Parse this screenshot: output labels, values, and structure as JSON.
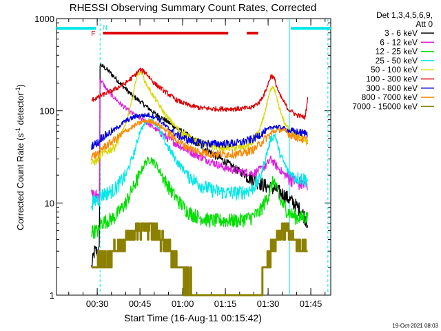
{
  "chart_data": {
    "type": "line",
    "title": "RHESSI Observing Summary Count Rates, Corrected",
    "xlabel": "Start Time (16-Aug-11 00:15:42)",
    "ylabel": "Corrected Count Rate (s",
    "ylabel_sup1": "-1",
    "ylabel_mid": " detector",
    "ylabel_sup2": "-1",
    "ylabel_end": ")",
    "yscale": "log",
    "ylim": [
      1,
      1000
    ],
    "y_ticks": [
      {
        "value": 1,
        "label": "1"
      },
      {
        "value": 10,
        "label": "10"
      },
      {
        "value": 100,
        "label": "100"
      },
      {
        "value": 1000,
        "label": "1000"
      }
    ],
    "x_ticks": [
      {
        "value": 30,
        "label": "00:30"
      },
      {
        "value": 45,
        "label": "00:45"
      },
      {
        "value": 60,
        "label": "01:00"
      },
      {
        "value": 75,
        "label": "01:15"
      },
      {
        "value": 90,
        "label": "01:30"
      },
      {
        "value": 105,
        "label": "01:45"
      }
    ],
    "xlim_minutes": [
      15.7,
      112
    ],
    "legend_header": [
      "Det 1,3,4,5,6,9,",
      "Att 0"
    ],
    "footer_timestamp": "19-Oct-2021 08:03",
    "flag_labels": {
      "F": "F",
      "N": "N"
    },
    "series": [
      {
        "name": "3 - 6 keV",
        "color": "#000000",
        "points": [
          [
            28,
            2
          ],
          [
            29,
            3
          ],
          [
            30,
            3
          ],
          [
            30.8,
            3
          ],
          [
            31,
            320
          ],
          [
            34,
            270
          ],
          [
            38,
            200
          ],
          [
            42,
            150
          ],
          [
            46,
            120
          ],
          [
            50,
            95
          ],
          [
            55,
            75
          ],
          [
            60,
            58
          ],
          [
            65,
            45
          ],
          [
            70,
            35
          ],
          [
            75,
            28
          ],
          [
            80,
            22
          ],
          [
            85,
            18
          ],
          [
            88,
            16
          ],
          [
            90,
            15
          ],
          [
            93,
            14
          ],
          [
            96,
            12
          ],
          [
            99,
            10
          ],
          [
            102,
            8
          ],
          [
            104,
            6
          ]
        ]
      },
      {
        "name": "6 - 12 keV",
        "color": "#e020e0",
        "points": [
          [
            28,
            12
          ],
          [
            29,
            12
          ],
          [
            30,
            12
          ],
          [
            30.8,
            12
          ],
          [
            31,
            220
          ],
          [
            34,
            160
          ],
          [
            38,
            120
          ],
          [
            42,
            95
          ],
          [
            46,
            80
          ],
          [
            50,
            65
          ],
          [
            55,
            50
          ],
          [
            60,
            40
          ],
          [
            65,
            33
          ],
          [
            70,
            28
          ],
          [
            75,
            24
          ],
          [
            80,
            22
          ],
          [
            85,
            21
          ],
          [
            89,
            25
          ],
          [
            91,
            30
          ],
          [
            93,
            25
          ],
          [
            96,
            20
          ],
          [
            100,
            17
          ],
          [
            104,
            15
          ]
        ]
      },
      {
        "name": "12 - 25 keV",
        "color": "#00e000",
        "points": [
          [
            28,
            5
          ],
          [
            30,
            5
          ],
          [
            30.8,
            5
          ],
          [
            31,
            6
          ],
          [
            36,
            7
          ],
          [
            40,
            10
          ],
          [
            44,
            18
          ],
          [
            47,
            28
          ],
          [
            49,
            30
          ],
          [
            51,
            25
          ],
          [
            54,
            17
          ],
          [
            58,
            11
          ],
          [
            62,
            8
          ],
          [
            66,
            7
          ],
          [
            70,
            6.5
          ],
          [
            75,
            6.5
          ],
          [
            80,
            6.5
          ],
          [
            84,
            7
          ],
          [
            87,
            8
          ],
          [
            90,
            12
          ],
          [
            92,
            18
          ],
          [
            94,
            11
          ],
          [
            97,
            8
          ],
          [
            100,
            7
          ],
          [
            104,
            7
          ]
        ]
      },
      {
        "name": "25 - 50 keV",
        "color": "#00e8e8",
        "points": [
          [
            28,
            10
          ],
          [
            30,
            11
          ],
          [
            30.8,
            11
          ],
          [
            31,
            12
          ],
          [
            36,
            14
          ],
          [
            40,
            20
          ],
          [
            43,
            35
          ],
          [
            45,
            60
          ],
          [
            47,
            75
          ],
          [
            49,
            80
          ],
          [
            51,
            70
          ],
          [
            54,
            45
          ],
          [
            58,
            28
          ],
          [
            62,
            20
          ],
          [
            66,
            16
          ],
          [
            70,
            14
          ],
          [
            75,
            13
          ],
          [
            80,
            13
          ],
          [
            84,
            14
          ],
          [
            87,
            18
          ],
          [
            89,
            30
          ],
          [
            91,
            50
          ],
          [
            92.5,
            55
          ],
          [
            94,
            35
          ],
          [
            97,
            22
          ],
          [
            100,
            19
          ],
          [
            104,
            18
          ]
        ]
      },
      {
        "name": "50 - 100 keV",
        "color": "#d8d800",
        "points": [
          [
            28,
            27
          ],
          [
            30,
            29
          ],
          [
            30.8,
            30
          ],
          [
            31,
            33
          ],
          [
            36,
            40
          ],
          [
            40,
            70
          ],
          [
            42,
            120
          ],
          [
            44,
            250
          ],
          [
            45.5,
            270
          ],
          [
            47,
            200
          ],
          [
            50,
            140
          ],
          [
            54,
            90
          ],
          [
            58,
            65
          ],
          [
            62,
            52
          ],
          [
            66,
            45
          ],
          [
            70,
            42
          ],
          [
            75,
            40
          ],
          [
            80,
            40
          ],
          [
            84,
            43
          ],
          [
            87,
            60
          ],
          [
            89,
            100
          ],
          [
            91,
            170
          ],
          [
            92,
            180
          ],
          [
            93.5,
            120
          ],
          [
            96,
            70
          ],
          [
            100,
            55
          ],
          [
            104,
            45
          ]
        ]
      },
      {
        "name": "100 - 300 keV",
        "color": "#e00000",
        "points": [
          [
            28,
            130
          ],
          [
            30,
            140
          ],
          [
            30.8,
            140
          ],
          [
            31,
            145
          ],
          [
            36,
            170
          ],
          [
            40,
            200
          ],
          [
            43,
            240
          ],
          [
            45,
            280
          ],
          [
            47,
            260
          ],
          [
            50,
            200
          ],
          [
            54,
            160
          ],
          [
            58,
            130
          ],
          [
            62,
            115
          ],
          [
            66,
            108
          ],
          [
            70,
            105
          ],
          [
            75,
            105
          ],
          [
            80,
            105
          ],
          [
            84,
            108
          ],
          [
            87,
            125
          ],
          [
            89,
            160
          ],
          [
            91,
            240
          ],
          [
            92,
            230
          ],
          [
            94,
            150
          ],
          [
            97,
            105
          ],
          [
            100,
            90
          ],
          [
            103,
            85
          ],
          [
            104,
            140
          ]
        ]
      },
      {
        "name": "300 - 800 keV",
        "color": "#0000e0",
        "points": [
          [
            28,
            42
          ],
          [
            30,
            45
          ],
          [
            30.8,
            45
          ],
          [
            31,
            50
          ],
          [
            36,
            62
          ],
          [
            40,
            78
          ],
          [
            44,
            88
          ],
          [
            48,
            90
          ],
          [
            51,
            85
          ],
          [
            54,
            68
          ],
          [
            58,
            55
          ],
          [
            62,
            48
          ],
          [
            66,
            45
          ],
          [
            70,
            44
          ],
          [
            75,
            44
          ],
          [
            80,
            45
          ],
          [
            85,
            50
          ],
          [
            89,
            60
          ],
          [
            92,
            68
          ],
          [
            95,
            65
          ],
          [
            98,
            60
          ],
          [
            101,
            58
          ],
          [
            104,
            57
          ]
        ]
      },
      {
        "name": "800 - 7000 keV",
        "color": "#ff8800",
        "points": [
          [
            28,
            32
          ],
          [
            30,
            34
          ],
          [
            30.8,
            34
          ],
          [
            31,
            38
          ],
          [
            36,
            48
          ],
          [
            40,
            60
          ],
          [
            44,
            72
          ],
          [
            47,
            78
          ],
          [
            50,
            76
          ],
          [
            54,
            62
          ],
          [
            58,
            48
          ],
          [
            62,
            40
          ],
          [
            66,
            36
          ],
          [
            70,
            34
          ],
          [
            75,
            34
          ],
          [
            80,
            34
          ],
          [
            85,
            38
          ],
          [
            89,
            50
          ],
          [
            92,
            60
          ],
          [
            95,
            62
          ],
          [
            98,
            55
          ],
          [
            101,
            50
          ],
          [
            104,
            48
          ]
        ]
      },
      {
        "name": "7000 - 15000 keV",
        "color": "#8b8000",
        "points": [
          [
            28,
            1.8
          ],
          [
            30,
            2.2
          ],
          [
            33,
            2.5
          ],
          [
            36,
            3
          ],
          [
            40,
            4
          ],
          [
            44,
            5
          ],
          [
            47,
            5.5
          ],
          [
            50,
            5
          ],
          [
            53,
            4
          ],
          [
            56,
            3
          ],
          [
            59,
            2
          ],
          [
            62,
            1.5
          ],
          [
            64,
            1
          ],
          [
            86,
            1
          ],
          [
            88,
            1.5
          ],
          [
            91,
            3
          ],
          [
            94,
            4.5
          ],
          [
            97,
            5
          ],
          [
            100,
            3.5
          ],
          [
            104,
            3
          ]
        ]
      }
    ],
    "flag_bars": [
      {
        "kind": "cyan",
        "color": "#00e8e8",
        "segments": [
          [
            15.7,
            29.5
          ],
          [
            98,
            112
          ]
        ]
      },
      {
        "kind": "red",
        "color": "#e00000",
        "segments": [
          [
            32,
            76
          ],
          [
            82.5,
            86.5
          ]
        ]
      }
    ],
    "vertical_markers": [
      {
        "minute": 31,
        "style": "dashed",
        "color": "#00e8e8"
      },
      {
        "minute": 97.5,
        "style": "solid",
        "color": "#00e8e8"
      },
      {
        "minute": 111,
        "style": "dashed",
        "color": "#00e8e8"
      }
    ]
  }
}
